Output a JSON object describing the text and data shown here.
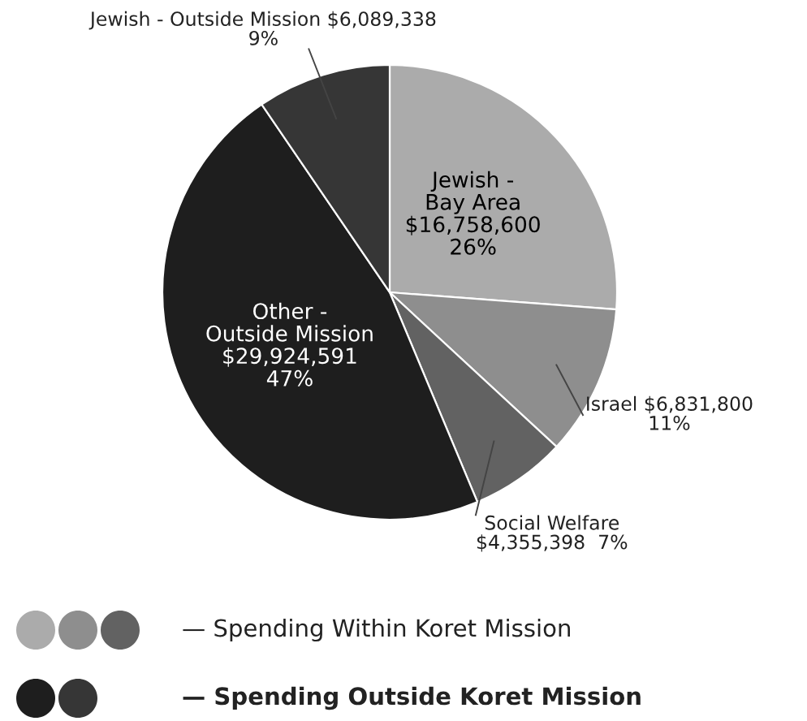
{
  "chart_data": {
    "type": "pie",
    "categories": [
      "Jewish -\nBay Area",
      "Israel",
      "Social Welfare",
      "Other -\nOutside Mission",
      "Jewish - Outside Mission"
    ],
    "values": [
      16758600,
      6831800,
      4355398,
      29924591,
      6089338
    ],
    "value_labels": [
      "$16,758,600\n26%",
      "$6,831,800\n11%",
      "$4,355,398  7%",
      "$29,924,591\n47%",
      "$6,089,338\n9%"
    ],
    "colors": [
      "#ababab",
      "#8e8e8e",
      "#626262",
      "#1e1e1e",
      "#363636"
    ],
    "annotations": [
      "— Spending Within Koret Mission",
      "— Spending Outside Koret Mission"
    ]
  }
}
